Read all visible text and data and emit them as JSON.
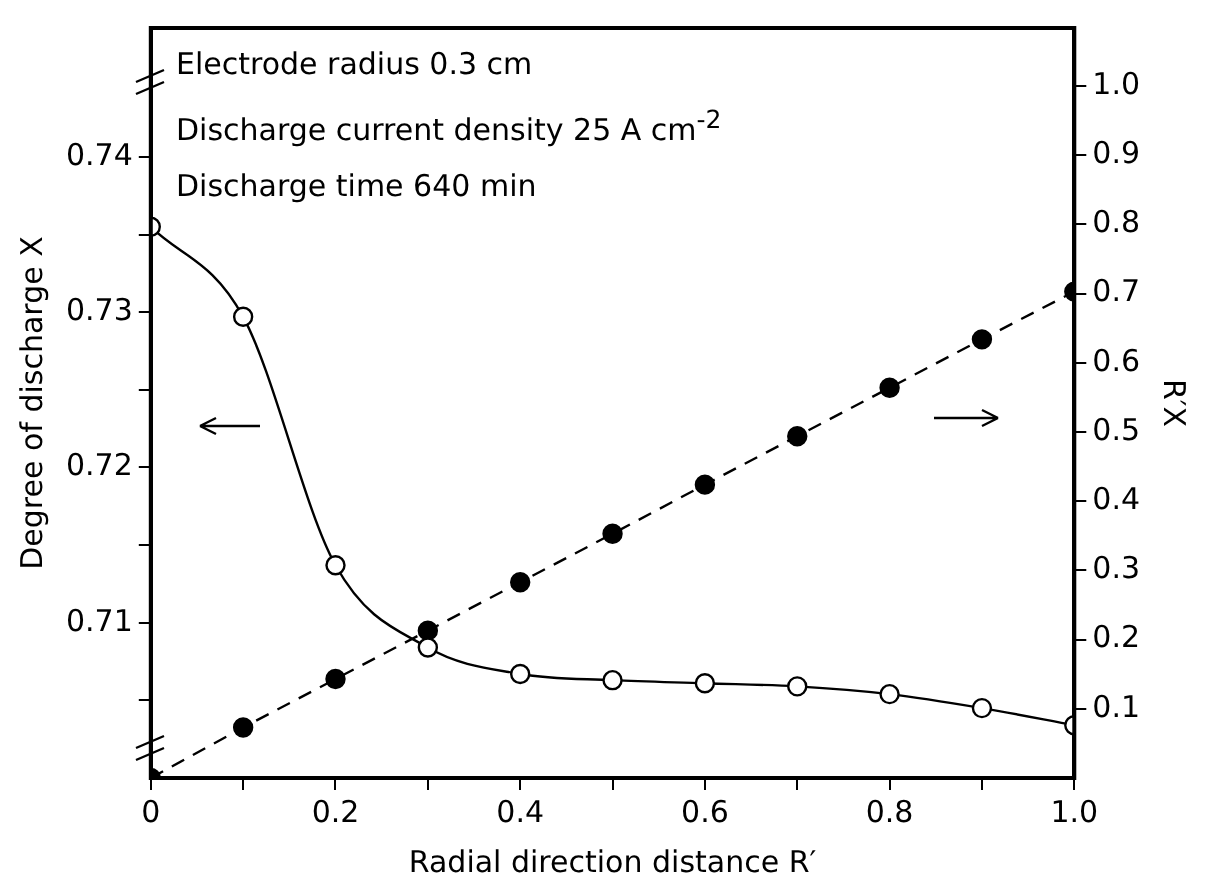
{
  "chart_data": {
    "type": "line",
    "xlabel": "Radial direction distance R′",
    "ylabel": "Degree of discharge X",
    "y2label": "R′X",
    "x": [
      0,
      0.1,
      0.2,
      0.3,
      0.4,
      0.5,
      0.6,
      0.7,
      0.8,
      0.9,
      1.0
    ],
    "series": [
      {
        "type": "line",
        "color": "#000000",
        "marker": "circle",
        "line_style": "solid",
        "values": [
          0.7355,
          0.7297,
          0.7137,
          0.7084,
          0.7067,
          0.7063,
          0.7061,
          0.7059,
          0.7054,
          0.7045,
          0.7034
        ]
      },
      {
        "type": "line",
        "axis": "y2",
        "color": "#000000",
        "marker": "circle",
        "line_style": "dashed",
        "values": [
          0,
          0.073,
          0.143,
          0.213,
          0.283,
          0.353,
          0.424,
          0.494,
          0.564,
          0.634,
          0.703
        ]
      }
    ],
    "xlim": [
      0,
      1.0
    ],
    "xticks": [
      0,
      {
        "value": 0.1,
        "label": null
      },
      {
        "value": 0.2,
        "label": "0.2"
      },
      {
        "value": 0.3,
        "label": null
      },
      {
        "value": 0.4,
        "label": "0.4"
      },
      {
        "value": 0.5,
        "label": null
      },
      {
        "value": 0.6,
        "label": "0.6"
      },
      {
        "value": 0.7,
        "label": null
      },
      {
        "value": 0.8,
        "label": "0.8"
      },
      {
        "value": 0.9,
        "label": null
      },
      {
        "value": 1.0,
        "label": "1.0"
      }
    ],
    "ylim": [
      0.7,
      0.7483
    ],
    "yticks": [
      {
        "value": 0.705,
        "label": null
      },
      0.71,
      {
        "value": 0.715,
        "label": null
      },
      0.72,
      {
        "value": 0.725,
        "label": null
      },
      0.73,
      {
        "value": 0.735,
        "label": null
      },
      0.74
    ],
    "y2lim": [
      0,
      1.084
    ],
    "y2ticks": [
      0.1,
      0.2,
      0.3,
      0.4,
      0.5,
      0.6,
      0.7,
      0.8,
      0.9,
      {
        "value": 1.0,
        "label": "1.0"
      }
    ],
    "annotations": [
      "Electrode radius 0.3 cm",
      "Discharge current density 25 A cm$^{-2}$",
      "Discharge time 640 min"
    ],
    "grid": false,
    "legend": false
  }
}
